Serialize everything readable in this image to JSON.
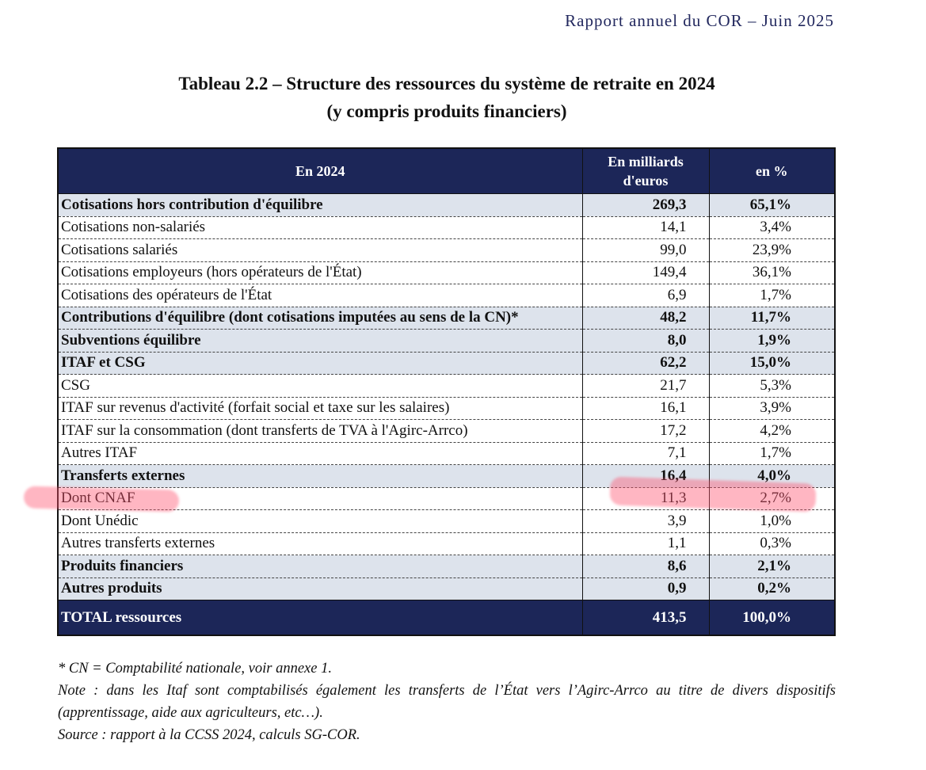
{
  "header": {
    "running_title": "Rapport annuel du COR – Juin 2025"
  },
  "title": [
    "Tableau 2.2 – Structure des ressources du système de retraite en 2024",
    "(y compris produits financiers)"
  ],
  "table": {
    "columns": [
      "En 2024",
      "En milliards d'euros",
      "en %"
    ],
    "rows": [
      [
        "Cotisations hors contribution d'équilibre",
        "269,3",
        "65,1%"
      ],
      [
        "Cotisations non-salariés",
        "14,1",
        "3,4%"
      ],
      [
        "Cotisations salariés",
        "99,0",
        "23,9%"
      ],
      [
        "Cotisations employeurs (hors opérateurs de l'État)",
        "149,4",
        "36,1%"
      ],
      [
        "Cotisations des opérateurs de l'État",
        "6,9",
        "1,7%"
      ],
      [
        "Contributions d'équilibre (dont cotisations imputées au sens de la CN)*",
        "48,2",
        "11,7%"
      ],
      [
        "Subventions équilibre",
        "8,0",
        "1,9%"
      ],
      [
        "ITAF et CSG",
        "62,2",
        "15,0%"
      ],
      [
        "CSG",
        "21,7",
        "5,3%"
      ],
      [
        "ITAF sur revenus d'activité (forfait social et taxe sur les salaires)",
        "16,1",
        "3,9%"
      ],
      [
        "ITAF sur la consommation (dont transferts de TVA à l'Agirc-Arrco)",
        "17,2",
        "4,2%"
      ],
      [
        "Autres ITAF",
        "7,1",
        "1,7%"
      ],
      [
        "Transferts externes",
        "16,4",
        "4,0%"
      ],
      [
        "Dont CNAF",
        "11,3",
        "2,7%"
      ],
      [
        "Dont Unédic",
        "3,9",
        "1,0%"
      ],
      [
        "Autres transferts externes",
        "1,1",
        "0,3%"
      ],
      [
        "Produits financiers",
        "8,6",
        "2,1%"
      ],
      [
        "Autres produits",
        "0,9",
        "0,2%"
      ]
    ],
    "total": [
      "TOTAL ressources",
      "413,5",
      "100,0%"
    ]
  },
  "notes": [
    "* CN = Comptabilité nationale, voir annexe 1.",
    "Note : dans les Itaf sont comptabilisés également les transferts de l’État vers l’Agirc-Arrco au titre de divers dispositifs (apprentissage, aide aux agriculteurs, etc…).",
    "Source : rapport à la CCSS 2024, calculs SG-COR."
  ]
}
